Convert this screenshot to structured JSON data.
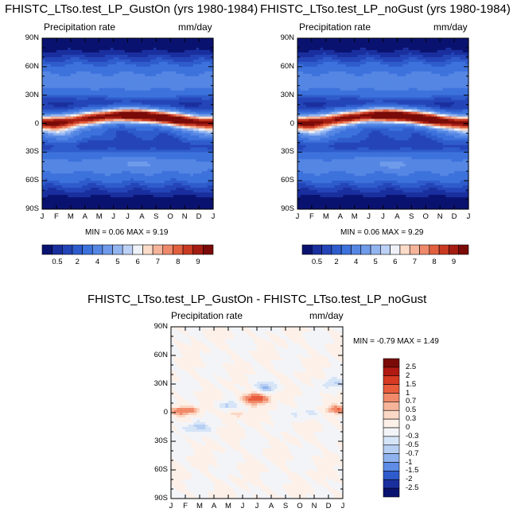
{
  "panels": [
    {
      "title": "FHISTC_LTso.test_LP_GustOn (yrs 1980-1984)",
      "left_label": "Precipitation rate",
      "right_label": "mm/day",
      "stats_text": "MIN =  0.06 MAX =  9.19",
      "min": 0.06,
      "max": 9.19
    },
    {
      "title": "FHISTC_LTso.test_LP_noGust (yrs 1980-1984)",
      "left_label": "Precipitation rate",
      "right_label": "mm/day",
      "stats_text": "MIN =  0.06 MAX =  9.29",
      "min": 0.06,
      "max": 9.29
    },
    {
      "title": "FHISTC_LTso.test_LP_GustOn - FHISTC_LTso.test_LP_noGust",
      "left_label": "Precipitation rate",
      "right_label": "mm/day",
      "stats_text": "MIN =  -0.79 MAX =   1.49",
      "min": -0.79,
      "max": 1.49
    }
  ],
  "chart_data": [
    {
      "type": "heatmap",
      "title": "FHISTC_LTso.test_LP_GustOn (yrs 1980-1984)",
      "x_ticks": [
        "J",
        "F",
        "M",
        "A",
        "M",
        "J",
        "J",
        "A",
        "S",
        "O",
        "N",
        "D",
        "J"
      ],
      "y_ticks": [
        "90N",
        "60N",
        "30N",
        "0",
        "30S",
        "60S",
        "90S"
      ],
      "ylim": [
        -90,
        90
      ],
      "colorbar_labels": [
        "0.5",
        "2",
        "4",
        "5",
        "6",
        "7",
        "8",
        "9"
      ],
      "colorbar_levels": [
        0.5,
        1,
        1.5,
        2,
        3,
        4,
        4.5,
        5,
        5.5,
        6,
        6.5,
        7,
        7.5,
        8,
        8.5,
        9
      ],
      "min": 0.06,
      "max": 9.19
    },
    {
      "type": "heatmap",
      "title": "FHISTC_LTso.test_LP_noGust (yrs 1980-1984)",
      "x_ticks": [
        "J",
        "F",
        "M",
        "A",
        "M",
        "J",
        "J",
        "A",
        "S",
        "O",
        "N",
        "D",
        "J"
      ],
      "y_ticks": [
        "90N",
        "60N",
        "30N",
        "0",
        "30S",
        "60S",
        "90S"
      ],
      "ylim": [
        -90,
        90
      ],
      "colorbar_labels": [
        "0.5",
        "2",
        "4",
        "5",
        "6",
        "7",
        "8",
        "9"
      ],
      "colorbar_levels": [
        0.5,
        1,
        1.5,
        2,
        3,
        4,
        4.5,
        5,
        5.5,
        6,
        6.5,
        7,
        7.5,
        8,
        8.5,
        9
      ],
      "min": 0.06,
      "max": 9.29
    },
    {
      "type": "heatmap",
      "title": "FHISTC_LTso.test_LP_GustOn - FHISTC_LTso.test_LP_noGust",
      "x_ticks": [
        "J",
        "F",
        "M",
        "A",
        "M",
        "J",
        "J",
        "A",
        "S",
        "O",
        "N",
        "D",
        "J"
      ],
      "y_ticks": [
        "90N",
        "60N",
        "30N",
        "0",
        "30S",
        "60S",
        "90S"
      ],
      "ylim": [
        -90,
        90
      ],
      "colorbar_labels": [
        "2.5",
        "2",
        "1.5",
        "1",
        "0.7",
        "0.5",
        "0.3",
        "0",
        "-0.3",
        "-0.5",
        "-0.7",
        "-1",
        "-1.5",
        "-2",
        "-2.5"
      ],
      "min": -0.79,
      "max": 1.49
    }
  ],
  "colors": {
    "precip": [
      "#0a1270",
      "#1a2f9e",
      "#2445b8",
      "#2f5ccc",
      "#3d72dc",
      "#5586e4",
      "#6f9bea",
      "#92b5f0",
      "#bcd1f5",
      "#eef2f8",
      "#fbdcc9",
      "#f5b49a",
      "#ee8a6b",
      "#e2603f",
      "#c93a22",
      "#a51d12",
      "#7a0b08"
    ],
    "diff": [
      "#7a0b08",
      "#b01a12",
      "#d63a22",
      "#e85c3c",
      "#f08a6a",
      "#f6b49a",
      "#fbd8c6",
      "#fdf0e8",
      "#f2f4f8",
      "#d6e4f7",
      "#b7cff3",
      "#8eb2ee",
      "#5e8ce6",
      "#2f5ccc",
      "#1a2f9e",
      "#0a1270"
    ]
  }
}
